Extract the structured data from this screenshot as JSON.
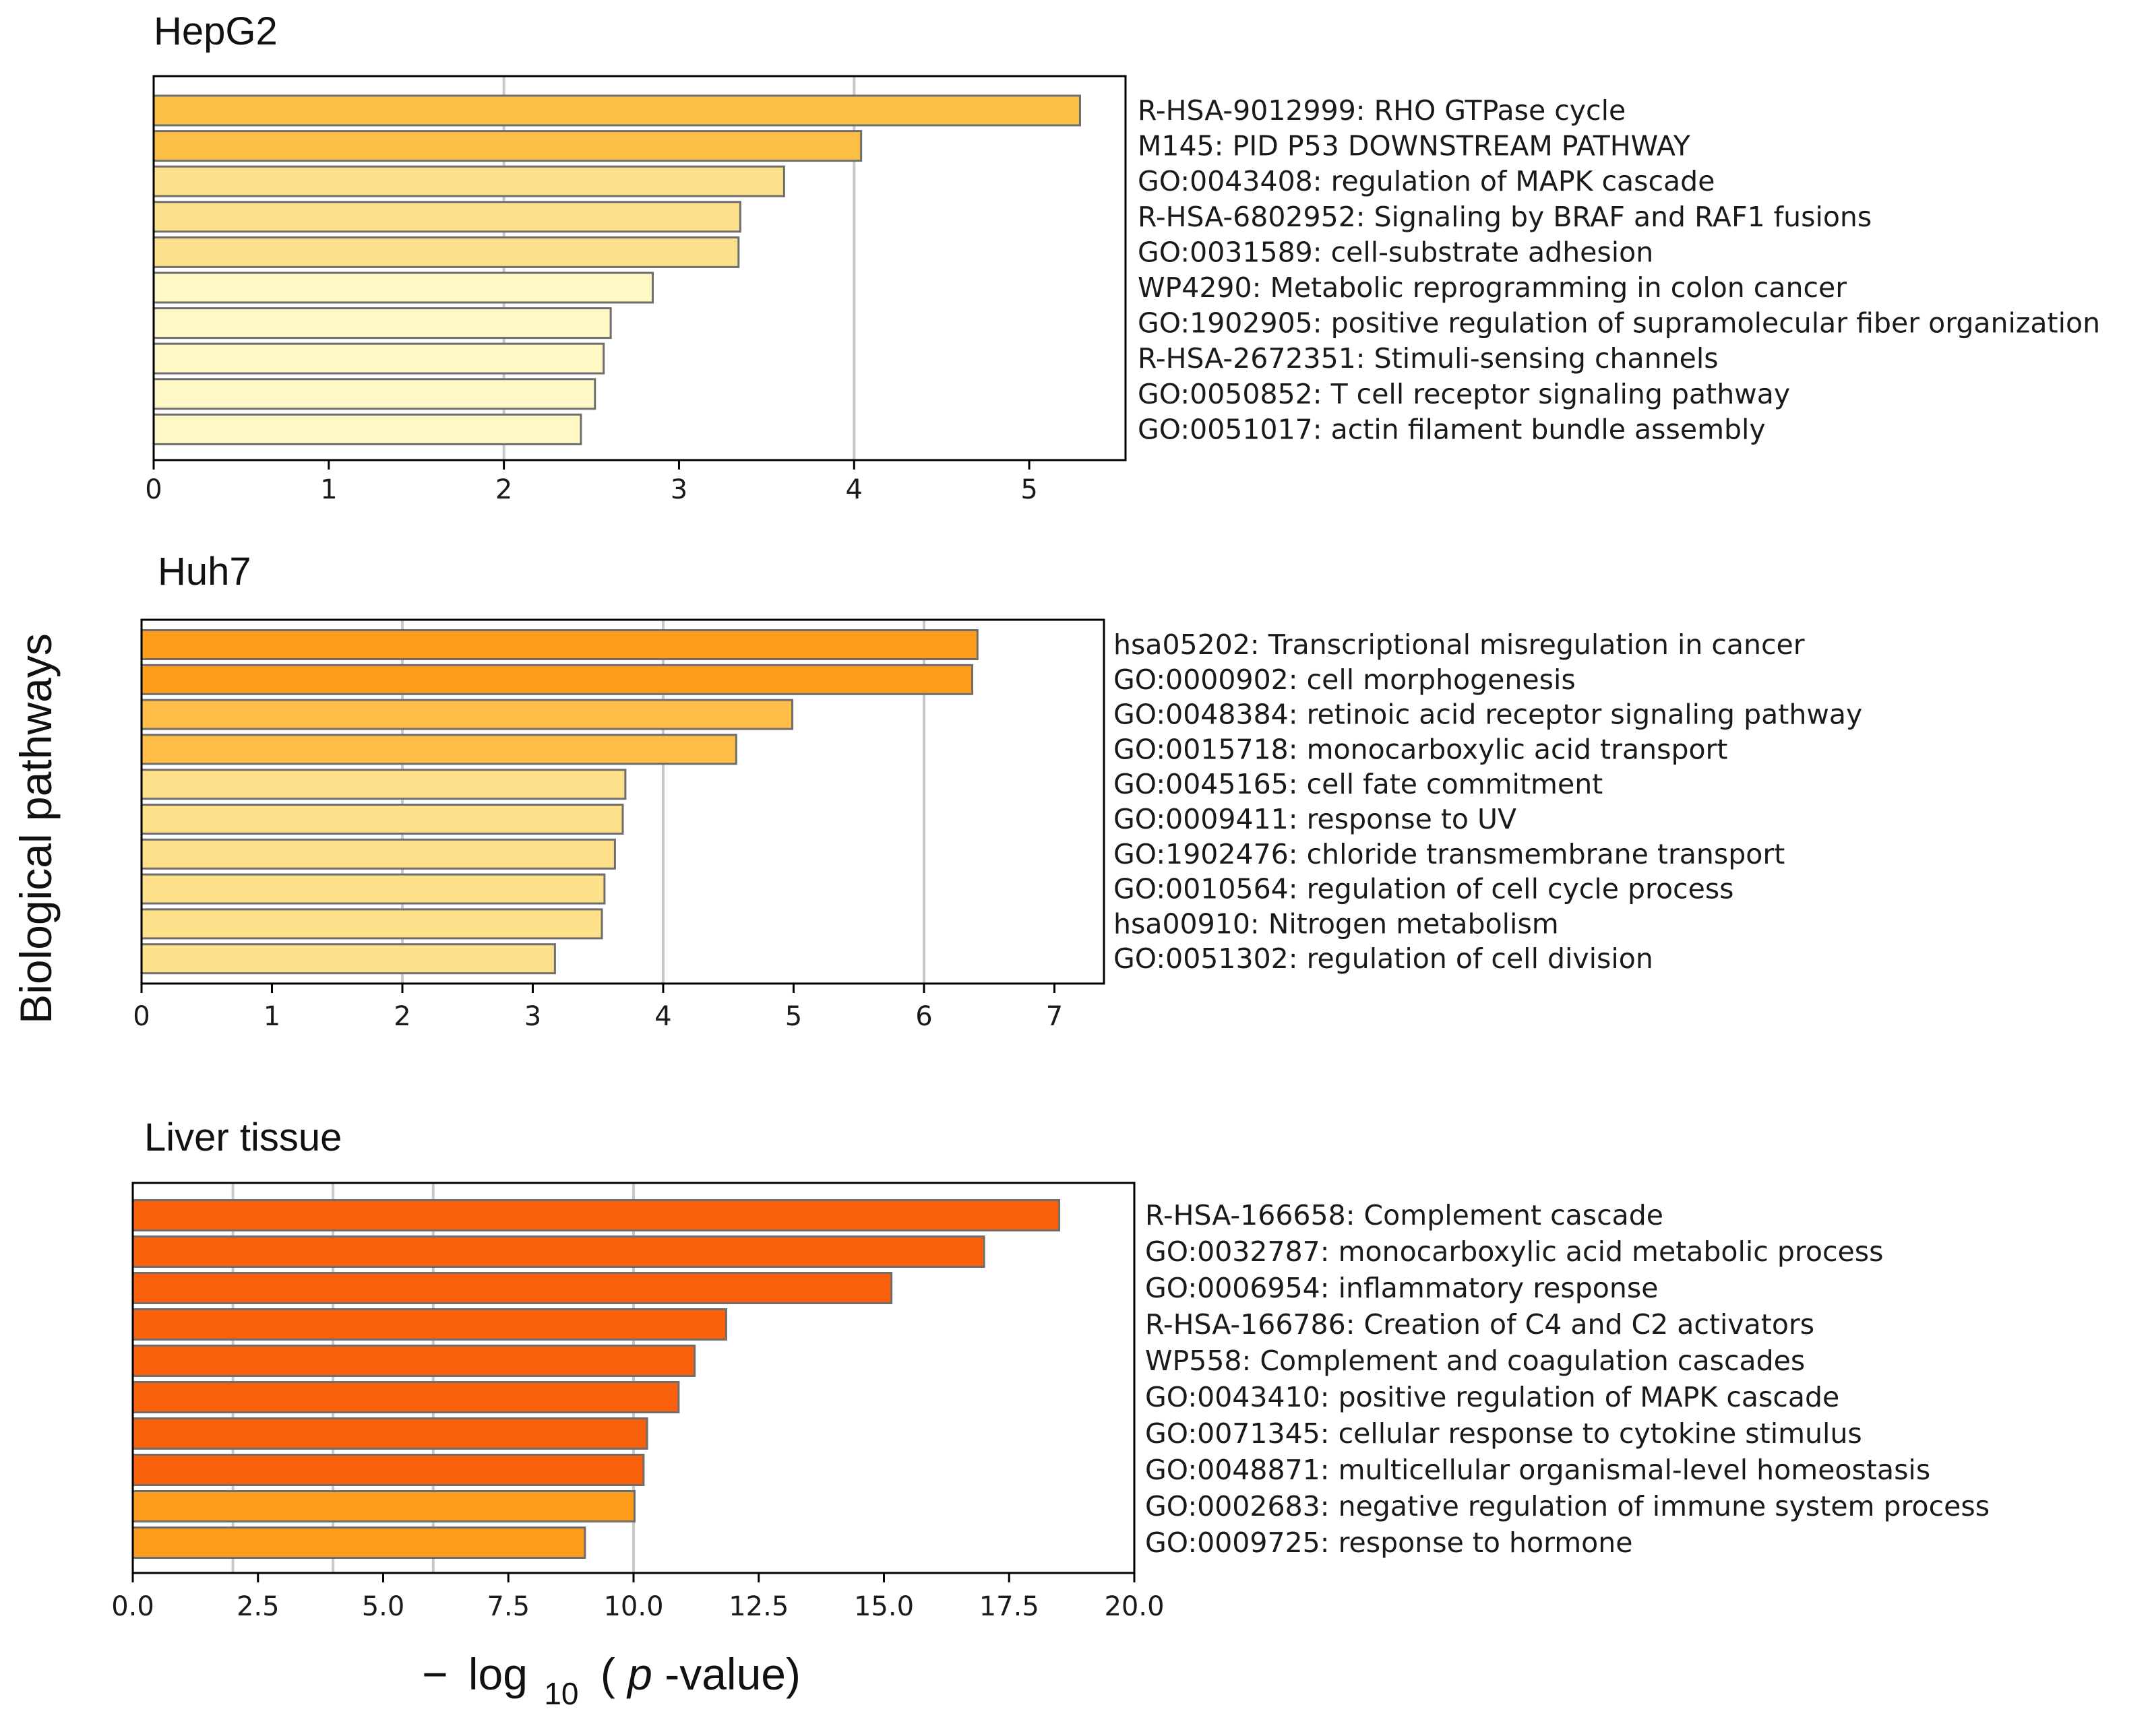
{
  "chart_data": [
    {
      "type": "bar",
      "orientation": "horizontal",
      "title": "HepG2",
      "categories": [
        "R-HSA-9012999: RHO GTPase cycle",
        "M145: PID P53 DOWNSTREAM PATHWAY",
        "GO:0043408: regulation of MAPK cascade",
        "R-HSA-6802952: Signaling by BRAF and RAF1 fusions",
        "GO:0031589: cell-substrate adhesion",
        "WP4290: Metabolic reprogramming in colon cancer",
        "GO:1902905: positive regulation of supramolecular fiber organization",
        "R-HSA-2672351: Stimuli-sensing channels",
        "GO:0050852: T cell receptor signaling pathway",
        "GO:0051017: actin filament bundle assembly"
      ],
      "values": [
        5.29,
        4.04,
        3.6,
        3.35,
        3.34,
        2.85,
        2.61,
        2.57,
        2.52,
        2.44
      ],
      "colors": [
        "#fbbf45",
        "#fbbf45",
        "#fde08c",
        "#fde08c",
        "#fde08c",
        "#fff7c4",
        "#fff7c4",
        "#fff7c4",
        "#fff7c4",
        "#fff7c4"
      ],
      "xlim": [
        0,
        5.55
      ],
      "xticks": [
        0,
        1,
        2,
        3,
        4,
        5
      ],
      "xtick_labels": [
        "0",
        "1",
        "2",
        "3",
        "4",
        "5"
      ],
      "gridlines": [
        2,
        4
      ]
    },
    {
      "type": "bar",
      "orientation": "horizontal",
      "title": "Huh7",
      "categories": [
        "hsa05202: Transcriptional misregulation in cancer",
        "GO:0000902: cell morphogenesis",
        "GO:0048384: retinoic acid receptor signaling pathway",
        "GO:0015718: monocarboxylic acid transport",
        "GO:0045165: cell fate commitment",
        "GO:0009411: response to UV",
        "GO:1902476: chloride transmembrane transport",
        "GO:0010564: regulation of cell cycle process",
        "hsa00910: Nitrogen metabolism",
        "GO:0051302: regulation of cell division"
      ],
      "values": [
        6.41,
        6.37,
        4.99,
        4.56,
        3.71,
        3.69,
        3.63,
        3.55,
        3.53,
        3.17
      ],
      "colors": [
        "#fd9c1b",
        "#fd9c1b",
        "#fdbd46",
        "#fdbd46",
        "#fee08a",
        "#fee08a",
        "#fee08a",
        "#fee08a",
        "#fee08a",
        "#fee08a"
      ],
      "xlim": [
        0,
        7.38
      ],
      "xticks": [
        0,
        1,
        2,
        3,
        4,
        5,
        6,
        7
      ],
      "xtick_labels": [
        "0",
        "1",
        "2",
        "3",
        "4",
        "5",
        "6",
        "7"
      ],
      "gridlines": [
        2,
        4,
        6
      ]
    },
    {
      "type": "bar",
      "orientation": "horizontal",
      "title": "Liver tissue",
      "categories": [
        "R-HSA-166658: Complement cascade",
        "GO:0032787: monocarboxylic acid metabolic process",
        "GO:0006954: inflammatory response",
        "R-HSA-166786: Creation of C4 and C2 activators",
        "WP558: Complement and coagulation cascades",
        "GO:0043410: positive regulation of MAPK cascade",
        "GO:0071345: cellular response to cytokine stimulus",
        "GO:0048871: multicellular organismal-level homeostasis",
        "GO:0002683: negative regulation of immune system process",
        "GO:0009725: response to hormone"
      ],
      "values": [
        18.5,
        17.0,
        15.15,
        11.85,
        11.22,
        10.9,
        10.27,
        10.2,
        10.02,
        9.03
      ],
      "colors": [
        "#fa600c",
        "#fa600c",
        "#fa600c",
        "#fa600c",
        "#fa600c",
        "#fa600c",
        "#fa600c",
        "#fa600c",
        "#fd9c1b",
        "#fd9c1b"
      ],
      "xlim": [
        0,
        20.0
      ],
      "xticks": [
        0,
        2.5,
        5,
        7.5,
        10,
        12.5,
        15,
        17.5,
        20
      ],
      "xtick_labels": [
        "0.0",
        "2.5",
        "5.0",
        "7.5",
        "10.0",
        "12.5",
        "15.0",
        "17.5",
        "20.0"
      ],
      "gridlines": [
        2,
        4,
        6,
        10
      ]
    }
  ],
  "ylabel": "Biological pathways",
  "xlabel": {
    "minus": "−",
    "log": "log",
    "subscript": "10",
    "paren_open": "(",
    "p": "p",
    "suffix": "-value)"
  }
}
